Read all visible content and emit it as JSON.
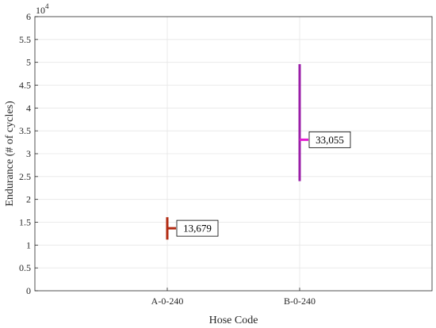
{
  "chart_data": {
    "type": "scatter",
    "title": "",
    "xlabel": "Hose Code",
    "ylabel": "Endurance (# of cycles)",
    "y_exponent_label": "10",
    "y_exponent_power": "4",
    "categories": [
      "A-0-240",
      "B-0-240"
    ],
    "xlim": [
      0,
      3
    ],
    "x_positions": [
      1,
      2
    ],
    "ylim": [
      0,
      60000
    ],
    "y_ticks": [
      0,
      5000,
      10000,
      15000,
      20000,
      25000,
      30000,
      35000,
      40000,
      45000,
      50000,
      55000,
      60000
    ],
    "y_tick_labels": [
      "0",
      "0.5",
      "1",
      "1.5",
      "2",
      "2.5",
      "3",
      "3.5",
      "4",
      "4.5",
      "5",
      "5.5",
      "6"
    ],
    "grid": true,
    "series": [
      {
        "category": "A-0-240",
        "mean": 13679,
        "min": 11200,
        "max": 16100,
        "label": "13,679",
        "color": "#b22a12"
      },
      {
        "category": "B-0-240",
        "mean": 33055,
        "min": 24000,
        "max": 49600,
        "label": "33,055",
        "color": "#9b1fa8",
        "mean_color": "#e41bd2"
      }
    ]
  }
}
